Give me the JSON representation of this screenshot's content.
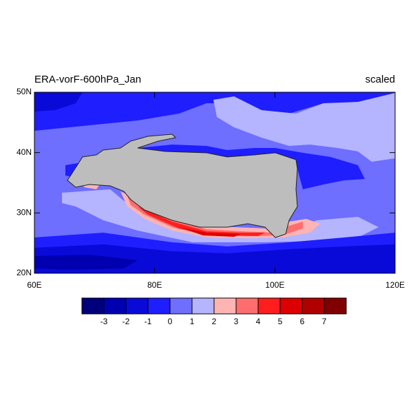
{
  "chart_data": {
    "type": "contour-map",
    "title": "ERA-vorF-600hPa_Jan",
    "subtitle": "scaled",
    "xlim": [
      60,
      120
    ],
    "ylim": [
      20,
      50
    ],
    "xticks": [
      {
        "value": 60,
        "label": "60E"
      },
      {
        "value": 80,
        "label": "80E"
      },
      {
        "value": 100,
        "label": "100E"
      },
      {
        "value": 120,
        "label": "120E"
      }
    ],
    "yticks": [
      {
        "value": 20,
        "label": "20N"
      },
      {
        "value": 30,
        "label": "30N"
      },
      {
        "value": 40,
        "label": "40N"
      },
      {
        "value": 50,
        "label": "50N"
      }
    ],
    "colorbar": {
      "levels": [
        -3,
        -2,
        -1,
        0,
        1,
        2,
        3,
        4,
        5,
        6,
        7
      ],
      "colors": [
        "#00007a",
        "#0000b0",
        "#0a0ad8",
        "#1e1eff",
        "#6e6eff",
        "#b4b4ff",
        "#ffb4b4",
        "#ff6e6e",
        "#ff1e1e",
        "#dc0000",
        "#b00000",
        "#800000"
      ]
    }
  }
}
